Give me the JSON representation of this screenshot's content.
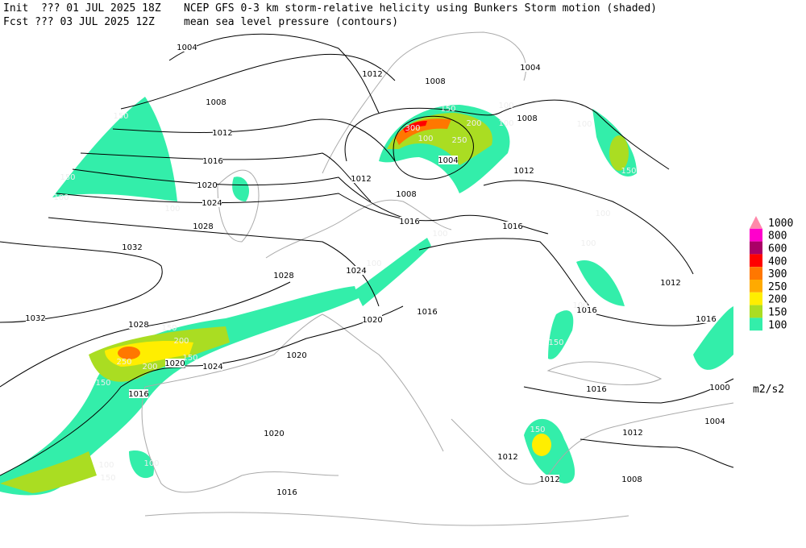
{
  "header": {
    "init": "Init  ??? 01 JUL 2025 18Z",
    "fcst": "Fcst ??? 03 JUL 2025 12Z",
    "title": "NCEP GFS 0-3 km storm-relative helicity using Bunkers Storm motion (shaded)",
    "subtitle": "mean sea level pressure (contours)"
  },
  "legend": {
    "levels": [
      1000,
      800,
      600,
      400,
      300,
      250,
      200,
      150,
      100
    ],
    "colors": [
      "#ff88aa",
      "#ff00cc",
      "#aa0066",
      "#ff0000",
      "#ff7700",
      "#ffaa00",
      "#ffee00",
      "#aadd22",
      "#33eeaa"
    ],
    "units": "m2/s2"
  },
  "isobar_labels": [
    "1004",
    "1012",
    "1008",
    "1004",
    "1008",
    "1012",
    "1008",
    "1016",
    "1020",
    "1024",
    "1028",
    "1012",
    "1004",
    "1008",
    "1016",
    "1016",
    "1012",
    "1032",
    "1028",
    "1024",
    "1012",
    "1016",
    "1016",
    "1016",
    "1020",
    "1032",
    "1028",
    "1020",
    "1020",
    "1024",
    "1016",
    "1016",
    "1000",
    "1004",
    "1012",
    "1020",
    "1012",
    "1012",
    "1008",
    "1016"
  ],
  "helicity_labels": [
    "150",
    "150",
    "100",
    "100",
    "150",
    "200",
    "100",
    "100",
    "300",
    "100",
    "250",
    "100",
    "150",
    "100",
    "100",
    "100",
    "100",
    "150",
    "200",
    "250",
    "150",
    "200",
    "150",
    "100",
    "100",
    "150",
    "150",
    "100",
    "150"
  ]
}
